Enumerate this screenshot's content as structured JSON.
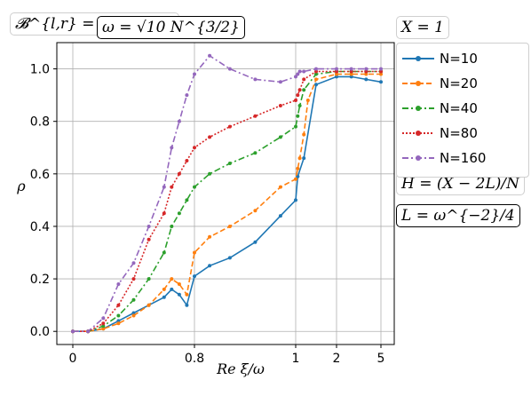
{
  "chart_data": {
    "type": "line",
    "title": "",
    "xlabel": "Re ξ/ω",
    "ylabel": "ρ",
    "ylim": [
      -0.05,
      1.1
    ],
    "x_ticks": [
      "0",
      "0.8",
      "1",
      "2",
      "5"
    ],
    "y_ticks": [
      "0.0",
      "0.2",
      "0.4",
      "0.6",
      "0.8",
      "1.0"
    ],
    "grid": true,
    "legend_position": "right",
    "annotations": {
      "top_left": "𝓑^{l,r} = 𝓑_j^{l,r}",
      "top_center": "ω = √10 N^{3/2}",
      "right_top": "X = 1",
      "right_middle": "H = (X − 2L)/N",
      "right_bottom": "L = ω^{−2}/4"
    },
    "series": [
      {
        "name": "N=10",
        "color": "#1f77b4",
        "style": "solid",
        "marker": "circle",
        "x": [
          0.0,
          0.1,
          0.2,
          0.3,
          0.4,
          0.5,
          0.6,
          0.65,
          0.7,
          0.75,
          0.8,
          0.83,
          0.87,
          0.92,
          0.97,
          1.0,
          1.05,
          1.2,
          1.5,
          2.0,
          3.0,
          4.0,
          5.0
        ],
        "y": [
          0.0,
          0.0,
          0.01,
          0.04,
          0.07,
          0.1,
          0.13,
          0.16,
          0.14,
          0.1,
          0.21,
          0.25,
          0.28,
          0.34,
          0.44,
          0.5,
          0.59,
          0.66,
          0.94,
          0.97,
          0.97,
          0.96,
          0.95
        ]
      },
      {
        "name": "N=20",
        "color": "#ff7f0e",
        "style": "dashed",
        "marker": "triangle",
        "x": [
          0.0,
          0.1,
          0.2,
          0.3,
          0.4,
          0.5,
          0.6,
          0.65,
          0.7,
          0.75,
          0.8,
          0.83,
          0.87,
          0.92,
          0.97,
          1.0,
          1.05,
          1.1,
          1.2,
          1.3,
          1.5,
          2.0,
          3.0,
          4.0,
          5.0
        ],
        "y": [
          0.0,
          0.0,
          0.01,
          0.03,
          0.06,
          0.1,
          0.16,
          0.2,
          0.18,
          0.14,
          0.3,
          0.36,
          0.4,
          0.46,
          0.55,
          0.58,
          0.62,
          0.66,
          0.75,
          0.88,
          0.96,
          0.98,
          0.98,
          0.98,
          0.98
        ]
      },
      {
        "name": "N=40",
        "color": "#2ca02c",
        "style": "dashdot",
        "marker": "circle",
        "x": [
          0.0,
          0.1,
          0.2,
          0.3,
          0.4,
          0.5,
          0.6,
          0.65,
          0.7,
          0.75,
          0.8,
          0.83,
          0.87,
          0.92,
          0.97,
          1.0,
          1.05,
          1.1,
          1.2,
          1.5,
          2.0,
          3.0,
          4.0,
          5.0
        ],
        "y": [
          0.0,
          0.0,
          0.02,
          0.06,
          0.12,
          0.2,
          0.3,
          0.4,
          0.45,
          0.5,
          0.55,
          0.6,
          0.64,
          0.68,
          0.74,
          0.78,
          0.82,
          0.86,
          0.92,
          0.98,
          0.99,
          0.99,
          0.99,
          0.99
        ]
      },
      {
        "name": "N=80",
        "color": "#d62728",
        "style": "dotted",
        "marker": "circle",
        "x": [
          0.0,
          0.1,
          0.2,
          0.3,
          0.4,
          0.5,
          0.6,
          0.65,
          0.7,
          0.75,
          0.8,
          0.83,
          0.87,
          0.92,
          0.97,
          1.0,
          1.05,
          1.1,
          1.2,
          1.5,
          2.0,
          3.0,
          4.0,
          5.0
        ],
        "y": [
          0.0,
          0.0,
          0.03,
          0.1,
          0.2,
          0.35,
          0.45,
          0.55,
          0.6,
          0.65,
          0.7,
          0.74,
          0.78,
          0.82,
          0.86,
          0.88,
          0.9,
          0.92,
          0.96,
          0.99,
          0.99,
          0.99,
          0.99,
          0.99
        ]
      },
      {
        "name": "N=160",
        "color": "#9467bd",
        "style": "dashdot",
        "marker": "circle",
        "x": [
          0.0,
          0.1,
          0.2,
          0.3,
          0.4,
          0.5,
          0.6,
          0.65,
          0.7,
          0.75,
          0.8,
          0.83,
          0.87,
          0.92,
          0.97,
          1.0,
          1.05,
          1.1,
          1.2,
          1.5,
          2.0,
          3.0,
          4.0,
          5.0
        ],
        "y": [
          0.0,
          0.0,
          0.05,
          0.18,
          0.26,
          0.4,
          0.55,
          0.7,
          0.8,
          0.9,
          0.98,
          1.05,
          1.0,
          0.96,
          0.95,
          0.97,
          0.98,
          0.99,
          0.99,
          1.0,
          1.0,
          1.0,
          1.0,
          1.0
        ]
      }
    ]
  }
}
